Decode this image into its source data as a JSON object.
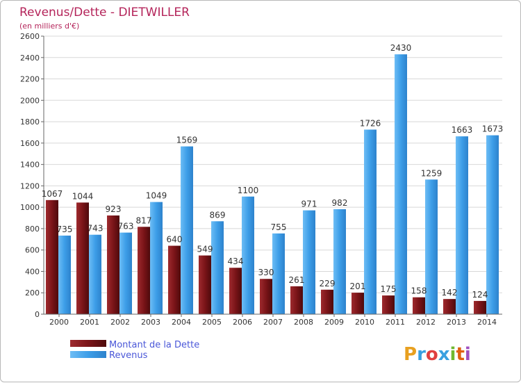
{
  "chart_data": {
    "type": "bar",
    "title": "Revenus/Dette - DIETWILLER",
    "subtitle": "(en milliers d'€)",
    "categories": [
      "2000",
      "2001",
      "2002",
      "2003",
      "2004",
      "2005",
      "2006",
      "2007",
      "2008",
      "2009",
      "2010",
      "2011",
      "2012",
      "2013",
      "2014"
    ],
    "series": [
      {
        "name": "Montant de la Dette",
        "color": "#7a1418",
        "values": [
          1067,
          1044,
          923,
          817,
          640,
          549,
          434,
          330,
          261,
          229,
          201,
          175,
          158,
          142,
          124
        ]
      },
      {
        "name": "Revenus",
        "color": "#3d9ee8",
        "values": [
          735,
          743,
          763,
          1049,
          1569,
          869,
          1100,
          755,
          971,
          982,
          1726,
          2430,
          1259,
          1663,
          1673
        ]
      }
    ],
    "ylim": [
      0,
      2600
    ],
    "yticks": [
      0,
      200,
      400,
      600,
      800,
      1000,
      1200,
      1400,
      1600,
      1800,
      2000,
      2200,
      2400,
      2600
    ],
    "grid": true,
    "legend": "bottom-left"
  },
  "brand": {
    "logo_text": "Proxiti",
    "colors": [
      "#e8a020",
      "#3aa0e0",
      "#e04040",
      "#3aa0e0",
      "#70b830",
      "#e06010",
      "#a050c0"
    ]
  }
}
